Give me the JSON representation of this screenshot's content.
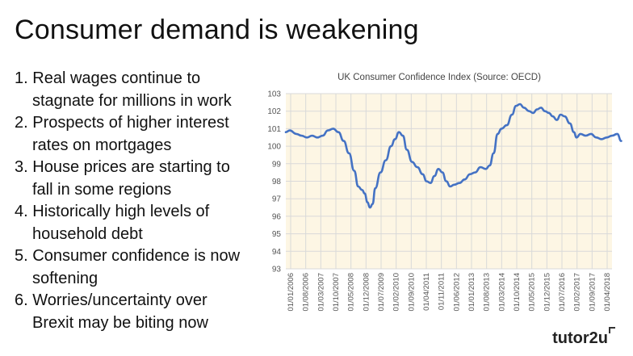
{
  "slide": {
    "title": "Consumer demand is weakening",
    "points": [
      {
        "num": "1.",
        "line1": "Real wages continue to",
        "line2": "stagnate for millions in work"
      },
      {
        "num": "2.",
        "line1": "Prospects of higher interest",
        "line2": "rates on mortgages"
      },
      {
        "num": "3.",
        "line1": "House prices are starting to",
        "line2": "fall in some regions"
      },
      {
        "num": "4.",
        "line1": "Historically high levels of",
        "line2": "household debt"
      },
      {
        "num": "5.",
        "line1": "Consumer confidence is now",
        "line2": "softening"
      },
      {
        "num": "6.",
        "line1": "Worries/uncertainty over",
        "line2": "Brexit may be biting now"
      }
    ],
    "brand": "tutor2u"
  },
  "colors": {
    "line": "#4472c4",
    "plot_bg": "#fdf6e4",
    "grid": "#d9d9d9"
  },
  "chart_data": {
    "type": "line",
    "title": "UK Consumer Confidence Index (Source: OECD)",
    "xlabel": "",
    "ylabel": "",
    "ylim": [
      93,
      103
    ],
    "yticks": [
      93,
      94,
      95,
      96,
      97,
      98,
      99,
      100,
      101,
      102,
      103
    ],
    "x_tick_labels": [
      "01/01/2006",
      "01/08/2006",
      "01/03/2007",
      "01/10/2007",
      "01/05/2008",
      "01/12/2008",
      "01/07/2009",
      "01/02/2010",
      "01/09/2010",
      "01/04/2011",
      "01/11/2011",
      "01/06/2012",
      "01/01/2013",
      "01/08/2013",
      "01/03/2014",
      "01/10/2014",
      "01/05/2015",
      "01/12/2015",
      "01/07/2016",
      "01/02/2017",
      "01/09/2017",
      "01/04/2018"
    ],
    "x_start": "2006-01",
    "x_end": "2018-05",
    "series": [
      {
        "name": "UK Consumer Confidence Index",
        "points": [
          [
            2006.0,
            100.8
          ],
          [
            2006.15,
            100.9
          ],
          [
            2006.4,
            100.7
          ],
          [
            2006.6,
            100.6
          ],
          [
            2006.8,
            100.5
          ],
          [
            2007.0,
            100.6
          ],
          [
            2007.2,
            100.5
          ],
          [
            2007.4,
            100.6
          ],
          [
            2007.6,
            100.9
          ],
          [
            2007.8,
            101.0
          ],
          [
            2008.0,
            100.8
          ],
          [
            2008.2,
            100.3
          ],
          [
            2008.4,
            99.6
          ],
          [
            2008.6,
            98.6
          ],
          [
            2008.75,
            97.7
          ],
          [
            2008.9,
            97.5
          ],
          [
            2009.0,
            97.3
          ],
          [
            2009.1,
            96.8
          ],
          [
            2009.2,
            96.5
          ],
          [
            2009.3,
            96.7
          ],
          [
            2009.4,
            97.6
          ],
          [
            2009.6,
            98.5
          ],
          [
            2009.8,
            99.2
          ],
          [
            2010.0,
            100.0
          ],
          [
            2010.15,
            100.4
          ],
          [
            2010.3,
            100.8
          ],
          [
            2010.45,
            100.6
          ],
          [
            2010.6,
            99.8
          ],
          [
            2010.8,
            99.1
          ],
          [
            2011.0,
            98.8
          ],
          [
            2011.2,
            98.4
          ],
          [
            2011.35,
            98.0
          ],
          [
            2011.5,
            97.9
          ],
          [
            2011.65,
            98.3
          ],
          [
            2011.8,
            98.7
          ],
          [
            2011.95,
            98.5
          ],
          [
            2012.1,
            98.0
          ],
          [
            2012.25,
            97.7
          ],
          [
            2012.4,
            97.8
          ],
          [
            2012.6,
            97.9
          ],
          [
            2012.8,
            98.1
          ],
          [
            2013.0,
            98.4
          ],
          [
            2013.2,
            98.5
          ],
          [
            2013.4,
            98.8
          ],
          [
            2013.6,
            98.7
          ],
          [
            2013.75,
            98.9
          ],
          [
            2013.9,
            99.6
          ],
          [
            2014.05,
            100.7
          ],
          [
            2014.2,
            101.0
          ],
          [
            2014.4,
            101.2
          ],
          [
            2014.6,
            101.8
          ],
          [
            2014.75,
            102.3
          ],
          [
            2014.9,
            102.4
          ],
          [
            2015.05,
            102.2
          ],
          [
            2015.25,
            102.0
          ],
          [
            2015.4,
            101.9
          ],
          [
            2015.55,
            102.1
          ],
          [
            2015.7,
            102.2
          ],
          [
            2015.85,
            102.0
          ],
          [
            2016.0,
            101.9
          ],
          [
            2016.15,
            101.7
          ],
          [
            2016.3,
            101.5
          ],
          [
            2016.45,
            101.8
          ],
          [
            2016.6,
            101.7
          ],
          [
            2016.8,
            101.3
          ],
          [
            2016.95,
            100.8
          ],
          [
            2017.05,
            100.5
          ],
          [
            2017.2,
            100.7
          ],
          [
            2017.4,
            100.6
          ],
          [
            2017.6,
            100.7
          ],
          [
            2017.8,
            100.5
          ],
          [
            2018.0,
            100.4
          ],
          [
            2018.2,
            100.5
          ],
          [
            2018.4,
            100.6
          ],
          [
            2018.6,
            100.7
          ],
          [
            2018.75,
            100.3
          ]
        ]
      }
    ]
  }
}
